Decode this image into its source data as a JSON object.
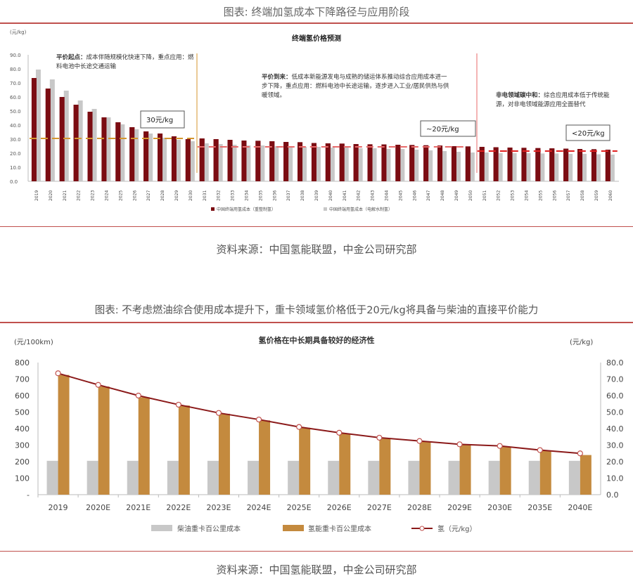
{
  "figure1": {
    "caption": "图表: 终端加氢成本下降路径与应用阶段",
    "source": "资料来源：中国氢能联盟，中金公司研究部"
  },
  "figure2": {
    "caption": "图表: 不考虑燃油综合使用成本提升下，重卡领域氢价格低于20元/kg将具备与柴油的直接平价能力",
    "source": "资料来源：中国氢能联盟，中金公司研究部"
  },
  "chart_data": [
    {
      "type": "bar",
      "title": "终端氢价格预测",
      "ylabel": "(元/kg)",
      "ylim": [
        0,
        90
      ],
      "yticks": [
        "0.0",
        "10.0",
        "20.0",
        "30.0",
        "40.0",
        "50.0",
        "60.0",
        "70.0",
        "80.0",
        "90.0"
      ],
      "categories": [
        "2019",
        "2020",
        "2021",
        "2022",
        "2023",
        "2024",
        "2025",
        "2026",
        "2027",
        "2028",
        "2029",
        "2030",
        "2031",
        "2032",
        "2033",
        "2034",
        "2035",
        "2036",
        "2037",
        "2038",
        "2039",
        "2040",
        "2041",
        "2042",
        "2043",
        "2044",
        "2045",
        "2046",
        "2047",
        "2048",
        "2049",
        "2050",
        "2051",
        "2052",
        "2053",
        "2054",
        "2055",
        "2056",
        "2057",
        "2058",
        "2059",
        "2060"
      ],
      "series": [
        {
          "name": "中国终端用氢成本（重整制氢）",
          "color": "#7b0c12",
          "values": [
            73.5,
            66,
            60,
            54.5,
            49.5,
            45.5,
            42,
            38.5,
            35.5,
            34,
            32,
            30,
            30.5,
            30,
            29.5,
            29,
            28.8,
            28.5,
            28,
            27.8,
            27.2,
            27,
            26.8,
            26.5,
            26.3,
            26.2,
            26,
            25.8,
            25.6,
            25.4,
            25,
            24.8,
            24.5,
            24.2,
            24,
            23.8,
            23.6,
            23.4,
            23.2,
            23,
            22.8,
            22.5
          ]
        },
        {
          "name": "中国终端用氢成本（电解水制氢）",
          "color": "#c8c8c8",
          "values": [
            79.5,
            72.5,
            64.5,
            57.5,
            51.5,
            45.5,
            40.5,
            37,
            34,
            31,
            29.5,
            28.5,
            27,
            26.5,
            26,
            25.5,
            25.5,
            25,
            25,
            24.5,
            24.5,
            24,
            24,
            23.5,
            23.5,
            23,
            23,
            22.5,
            22,
            21.5,
            21,
            20.5,
            20.5,
            20,
            20,
            20,
            19.8,
            19.8,
            19.5,
            19.5,
            19.2,
            19
          ]
        }
      ],
      "reference_lines": [
        {
          "label": "30元/kg",
          "value": 30.5,
          "from": "2019",
          "to": "2030",
          "color": "#d4962e"
        },
        {
          "label": "~20元/kg",
          "value": 24.5,
          "from": "2031",
          "to": "2049",
          "color": "#e86a6a"
        },
        {
          "label": "<20元/kg",
          "value": 21.5,
          "from": "2051",
          "to": "2060",
          "color": "#e02020"
        }
      ],
      "annotations": [
        {
          "title": "平价起点：",
          "text": "成本伴随规模化快速下降，重点应用：燃料电池中长途交通运输"
        },
        {
          "title": "平价到来：",
          "text": "低成本新能源发电与成熟的储运体系推动综合应用成本进一步下降，重点应用：燃料电池中长途运输，逐步进入工业/居民供热与供暖领域。"
        },
        {
          "title": "非电领域碳中和：",
          "text": "综合应用成本低于传统能源，对非电领域能源应用全面替代"
        }
      ]
    },
    {
      "type": "bar",
      "title": "氢价格在中长期具备较好的经济性",
      "ylabel": "(元/100km)",
      "y2label": "(元/kg)",
      "ylim": [
        0,
        800
      ],
      "y2lim": [
        0,
        80
      ],
      "yticks": [
        "-",
        "100",
        "200",
        "300",
        "400",
        "500",
        "600",
        "700",
        "800"
      ],
      "y2ticks": [
        "0.0",
        "10.0",
        "20.0",
        "30.0",
        "40.0",
        "50.0",
        "60.0",
        "70.0",
        "80.0"
      ],
      "categories": [
        "2019",
        "2020E",
        "2021E",
        "2022E",
        "2023E",
        "2024E",
        "2025E",
        "2026E",
        "2027E",
        "2028E",
        "2029E",
        "2030E",
        "2035E",
        "2040E"
      ],
      "series": [
        {
          "name": "柴油重卡百公里成本",
          "type": "bar",
          "color": "#c8c8c8",
          "values": [
            205,
            205,
            205,
            205,
            205,
            205,
            205,
            205,
            205,
            205,
            205,
            205,
            205,
            205
          ]
        },
        {
          "name": "氢能重卡百公里成本",
          "type": "bar",
          "color": "#c48a3e",
          "values": [
            725,
            655,
            590,
            540,
            490,
            450,
            405,
            370,
            340,
            320,
            305,
            290,
            265,
            240
          ]
        },
        {
          "name": "氢（元/kg）",
          "type": "line",
          "axis": "right",
          "color": "#8b1a1a",
          "values": [
            73.5,
            66.5,
            60,
            54.5,
            49.5,
            45.5,
            41,
            37.5,
            34.5,
            32.5,
            30.5,
            29.5,
            27,
            25
          ]
        }
      ]
    }
  ]
}
